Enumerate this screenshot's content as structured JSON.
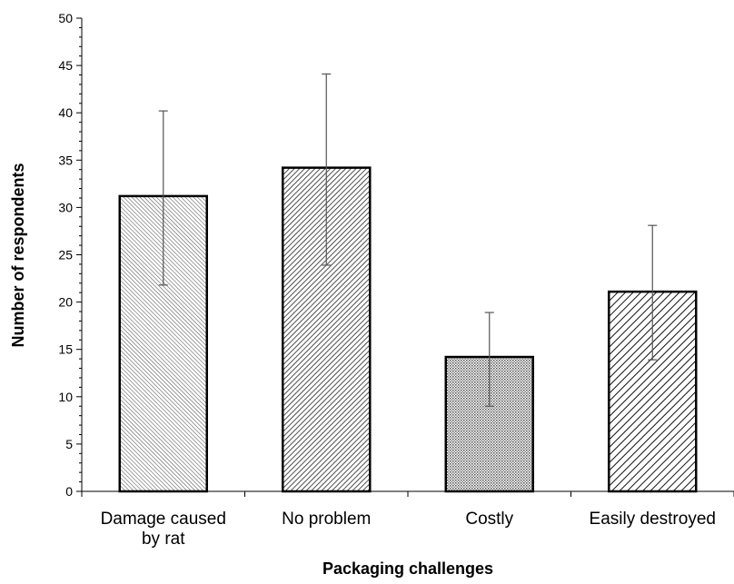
{
  "chart_data": {
    "type": "bar",
    "title": "",
    "xlabel": "Packaging challenges",
    "ylabel": "Number of respondents",
    "ylim": [
      0,
      50
    ],
    "ytick_step": 5,
    "yticks": [
      "0",
      "5",
      "10",
      "15",
      "20",
      "25",
      "30",
      "35",
      "40",
      "45",
      "50"
    ],
    "categories": [
      "Damage caused by rat",
      "No problem",
      "Costly",
      "Easily destroyed"
    ],
    "category_label_lines": [
      [
        "Damage caused",
        "by rat"
      ],
      [
        "No problem"
      ],
      [
        "Costly"
      ],
      [
        "Easily destroyed"
      ]
    ],
    "values": [
      31.2,
      34.2,
      14.2,
      21.1
    ],
    "error_low": [
      21.8,
      23.9,
      9.0,
      13.9
    ],
    "error_high": [
      40.2,
      44.1,
      18.9,
      28.1
    ],
    "patterns": [
      "fine-diagonal-left",
      "diagonal-right",
      "dots",
      "wide-diagonal-right"
    ],
    "grid": false,
    "legend": "none",
    "colors": {
      "bar_fill": "#ffffff",
      "bar_stroke": "#000000",
      "hatch": "#333333",
      "error_bar": "#555555",
      "axis": "#000000"
    }
  }
}
